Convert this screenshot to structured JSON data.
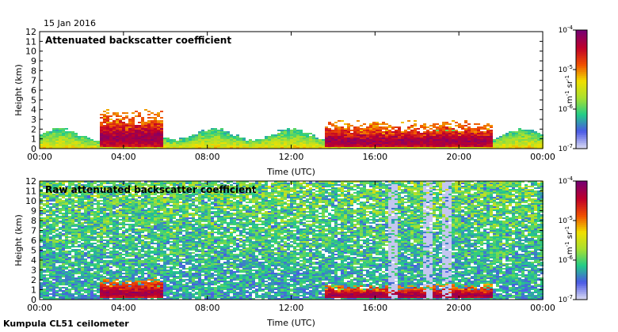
{
  "date_label": "15 Jan 2016",
  "footer_label": "Kumpula CL51 ceilometer",
  "colors": {
    "scale": [
      "#d8d8f2",
      "#4a58e6",
      "#22cc88",
      "#a8e030",
      "#f0e000",
      "#f05000",
      "#c0002a",
      "#7a0070"
    ],
    "background": "#ffffff"
  },
  "chart_data": [
    {
      "type": "heatmap",
      "title": "Attenuated backscatter coefficient",
      "xlabel": "Time (UTC)",
      "ylabel": "Height (km)",
      "x_ticks": [
        "00:00",
        "04:00",
        "08:00",
        "12:00",
        "16:00",
        "20:00",
        "00:00"
      ],
      "xlim": [
        0,
        24
      ],
      "ylim": [
        0,
        12
      ],
      "y_ticks": [
        "0",
        "1",
        "2",
        "3",
        "4",
        "5",
        "6",
        "7",
        "8",
        "9",
        "10",
        "11",
        "12"
      ],
      "colorbar": {
        "scale": "log",
        "range": [
          1e-07,
          0.0001
        ],
        "tick_labels": [
          {
            "base": "10",
            "exp": "-4",
            "value": 0.0001
          },
          {
            "base": "10",
            "exp": "-5",
            "value": 1e-05
          },
          {
            "base": "10",
            "exp": "-6",
            "value": 1e-06
          },
          {
            "base": "10",
            "exp": "-7",
            "value": 1e-07
          }
        ],
        "unit": {
          "m": "m",
          "m_exp": "-1",
          "sr": "sr",
          "sr_exp": "-1"
        }
      },
      "features": [
        {
          "kind": "boundary_layer",
          "t_start": 0,
          "t_end": 24,
          "top_km": 1.9
        },
        {
          "kind": "cloud",
          "t_start": 2.9,
          "t_end": 5.9,
          "base_km": 0.2,
          "top_km": 4.2
        },
        {
          "kind": "cloud",
          "t_start": 13.6,
          "t_end": 21.6,
          "base_km": 0.1,
          "top_km": 3.0
        }
      ]
    },
    {
      "type": "heatmap",
      "title": "Raw attenuated backscatter coefficient",
      "xlabel": "Time (UTC)",
      "ylabel": "Height (km)",
      "x_ticks": [
        "00:00",
        "04:00",
        "08:00",
        "12:00",
        "16:00",
        "20:00",
        "00:00"
      ],
      "xlim": [
        0,
        24
      ],
      "ylim": [
        0,
        12
      ],
      "y_ticks": [
        "0",
        "1",
        "2",
        "3",
        "4",
        "5",
        "6",
        "7",
        "8",
        "9",
        "10",
        "11",
        "12"
      ],
      "colorbar": {
        "scale": "log",
        "range": [
          1e-07,
          0.0001
        ],
        "tick_labels": [
          {
            "base": "10",
            "exp": "-4",
            "value": 0.0001
          },
          {
            "base": "10",
            "exp": "-5",
            "value": 1e-05
          },
          {
            "base": "10",
            "exp": "-6",
            "value": 1e-06
          },
          {
            "base": "10",
            "exp": "-7",
            "value": 1e-07
          }
        ],
        "unit": {
          "m": "m",
          "m_exp": "-1",
          "sr": "sr",
          "sr_exp": "-1"
        }
      },
      "features": [
        {
          "kind": "noise_field",
          "t_start": 0,
          "t_end": 24,
          "base_km": 0,
          "top_km": 12
        },
        {
          "kind": "cloud",
          "t_start": 2.9,
          "t_end": 5.9,
          "base_km": 0.2,
          "top_km": 2.2
        },
        {
          "kind": "cloud",
          "t_start": 13.6,
          "t_end": 21.6,
          "base_km": 0.1,
          "top_km": 1.6
        },
        {
          "kind": "gap_column",
          "t_center": 16.8
        },
        {
          "kind": "gap_column",
          "t_center": 18.5
        },
        {
          "kind": "gap_column",
          "t_center": 19.4
        }
      ]
    }
  ]
}
